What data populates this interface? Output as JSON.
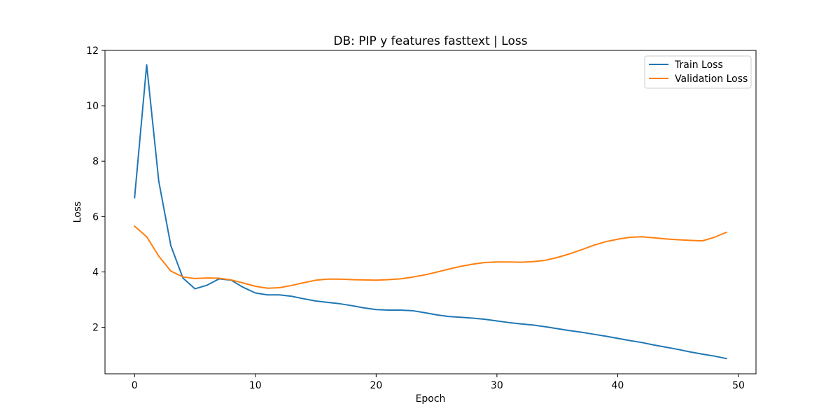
{
  "chart_data": {
    "type": "line",
    "title": "DB: PIP y features fasttext | Loss",
    "xlabel": "Epoch",
    "ylabel": "Loss",
    "xlim": [
      -2.45,
      51.45
    ],
    "ylim": [
      0.32,
      12.0
    ],
    "xticks": [
      0,
      10,
      20,
      30,
      40,
      50
    ],
    "yticks": [
      2,
      4,
      6,
      8,
      10,
      12
    ],
    "legend_position": "upper right",
    "grid": false,
    "x": [
      0,
      1,
      2,
      3,
      4,
      5,
      6,
      7,
      8,
      9,
      10,
      11,
      12,
      13,
      14,
      15,
      16,
      17,
      18,
      19,
      20,
      21,
      22,
      23,
      24,
      25,
      26,
      27,
      28,
      29,
      30,
      31,
      32,
      33,
      34,
      35,
      36,
      37,
      38,
      39,
      40,
      41,
      42,
      43,
      44,
      45,
      46,
      47,
      48,
      49
    ],
    "series": [
      {
        "name": "Train Loss",
        "color": "#1f77b4",
        "values": [
          6.68,
          11.48,
          7.28,
          4.95,
          3.78,
          3.39,
          3.52,
          3.75,
          3.7,
          3.44,
          3.24,
          3.17,
          3.17,
          3.12,
          3.03,
          2.95,
          2.9,
          2.85,
          2.78,
          2.7,
          2.64,
          2.62,
          2.62,
          2.6,
          2.53,
          2.45,
          2.39,
          2.36,
          2.33,
          2.29,
          2.23,
          2.17,
          2.12,
          2.08,
          2.02,
          1.95,
          1.88,
          1.82,
          1.75,
          1.68,
          1.6,
          1.52,
          1.45,
          1.36,
          1.28,
          1.2,
          1.11,
          1.03,
          0.96,
          0.87
        ]
      },
      {
        "name": "Validation Loss",
        "color": "#ff7f0e",
        "values": [
          5.65,
          5.27,
          4.57,
          4.03,
          3.82,
          3.76,
          3.78,
          3.77,
          3.71,
          3.6,
          3.48,
          3.41,
          3.43,
          3.51,
          3.61,
          3.7,
          3.74,
          3.74,
          3.72,
          3.71,
          3.7,
          3.72,
          3.75,
          3.81,
          3.89,
          3.99,
          4.1,
          4.2,
          4.28,
          4.34,
          4.36,
          4.36,
          4.35,
          4.37,
          4.42,
          4.52,
          4.65,
          4.8,
          4.96,
          5.09,
          5.18,
          5.25,
          5.27,
          5.23,
          5.19,
          5.16,
          5.14,
          5.12,
          5.25,
          5.43
        ]
      }
    ]
  }
}
